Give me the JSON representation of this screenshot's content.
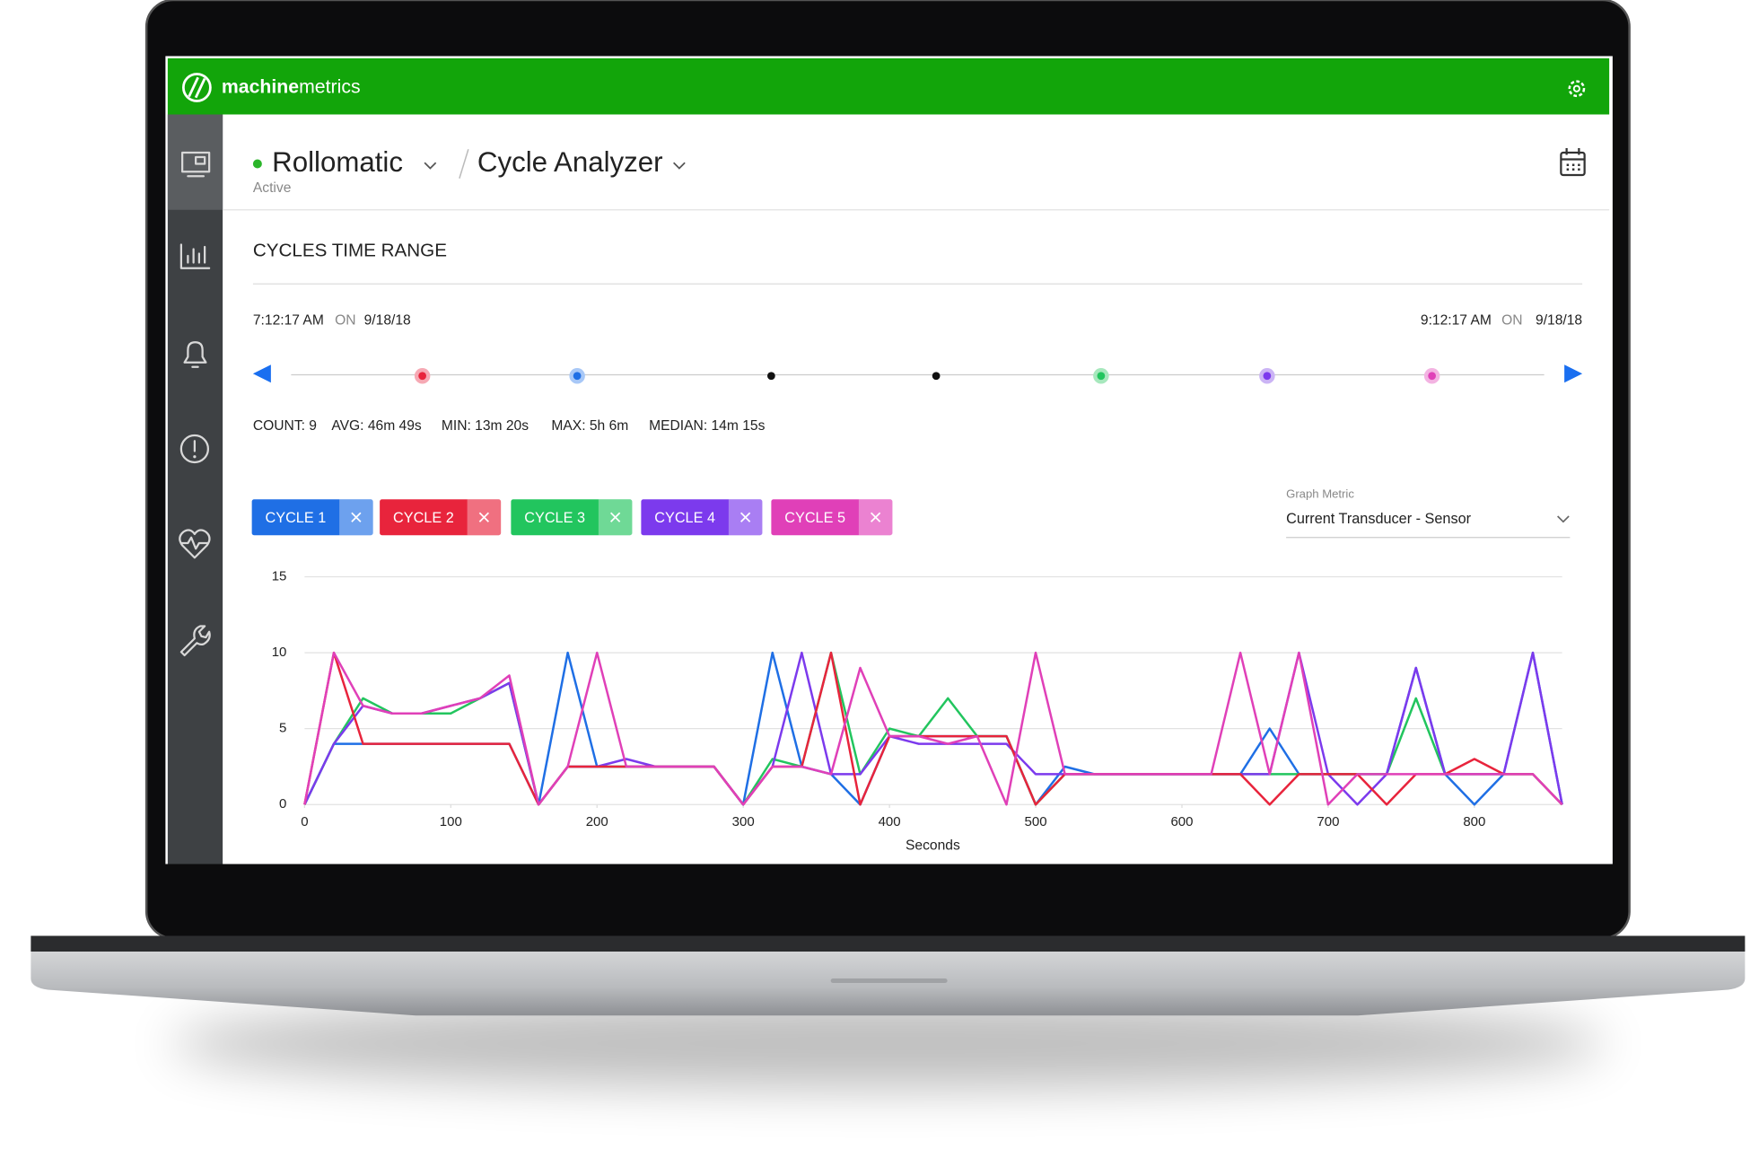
{
  "header": {
    "brand": [
      "machine",
      "metrics"
    ]
  },
  "title": {
    "machine": "Rollomatic",
    "status": "Active",
    "view": "Cycle Analyzer"
  },
  "section": {
    "title": "CYCLES TIME RANGE"
  },
  "range": {
    "start": {
      "time": "7:12:17 AM",
      "on": "ON",
      "date": "9/18/18"
    },
    "end": {
      "time": "9:12:17 AM",
      "on": "ON",
      "date": "9/18/18"
    }
  },
  "stats": [
    "COUNT: 9",
    "AVG: 46m 49s",
    "MIN: 13m 20s",
    "MAX: 5h 6m",
    "MEDIAN: 14m 15s"
  ],
  "graph_metric": {
    "label": "Graph Metric",
    "value": "Current Transducer - Sensor"
  },
  "chart_data": {
    "type": "line",
    "x": [
      0,
      20,
      40,
      60,
      80,
      100,
      120,
      140,
      160,
      180,
      200,
      220,
      240,
      260,
      280,
      300,
      320,
      340,
      360,
      380,
      400,
      420,
      440,
      460,
      480,
      500,
      520,
      540,
      560,
      580,
      600,
      620,
      640,
      660,
      680,
      700,
      720,
      740,
      760,
      780,
      800,
      820,
      840,
      860
    ],
    "xlim": [
      0,
      860
    ],
    "xticks": [
      0,
      100,
      200,
      300,
      400,
      500,
      600,
      700,
      800
    ],
    "ylim": [
      0,
      15
    ],
    "yticks": [
      0,
      5,
      10,
      15
    ],
    "xlabel": "Seconds",
    "grid": true,
    "series": [
      {
        "name": "CYCLE 1",
        "color": "#1f6fe5",
        "values": [
          0,
          4,
          4,
          4,
          4,
          4,
          4,
          4,
          0,
          10,
          2.5,
          2.5,
          2.5,
          2.5,
          2.5,
          0,
          10,
          2.5,
          2,
          0,
          4.5,
          4.5,
          4.5,
          4.5,
          4.5,
          0,
          2.5,
          2,
          2,
          2,
          2,
          2,
          2,
          5,
          2,
          2,
          2,
          2,
          9,
          2,
          0,
          2,
          10,
          0
        ]
      },
      {
        "name": "CYCLE 2",
        "color": "#e8243c",
        "values": [
          0,
          10,
          4,
          4,
          4,
          4,
          4,
          4,
          0,
          2.5,
          2.5,
          2.5,
          2.5,
          2.5,
          2.5,
          0,
          2.5,
          2.5,
          10,
          0,
          4.5,
          4.5,
          4.5,
          4.5,
          4.5,
          0,
          2,
          2,
          2,
          2,
          2,
          2,
          2,
          0,
          2,
          2,
          2,
          0,
          2,
          2,
          3,
          2,
          2,
          0
        ]
      },
      {
        "name": "CYCLE 3",
        "color": "#22c55e",
        "values": [
          0,
          4,
          7,
          6,
          6,
          6,
          7,
          8,
          0,
          2.5,
          2.5,
          2.5,
          2.5,
          2.5,
          2.5,
          0,
          3,
          2.5,
          10,
          2,
          5,
          4.5,
          7,
          4.5,
          4.5,
          0,
          2,
          2,
          2,
          2,
          2,
          2,
          2,
          2,
          2,
          2,
          2,
          2,
          7,
          2,
          2,
          2,
          2,
          0
        ]
      },
      {
        "name": "CYCLE 4",
        "color": "#7c3aed",
        "values": [
          0,
          4,
          6.5,
          6,
          6,
          6.5,
          7,
          8,
          0,
          2.5,
          2.5,
          3,
          2.5,
          2.5,
          2.5,
          0,
          2.5,
          10,
          2,
          2,
          4.5,
          4,
          4,
          4,
          4,
          2,
          2,
          2,
          2,
          2,
          2,
          2,
          2,
          2,
          10,
          2,
          0,
          2,
          9,
          2,
          2,
          2,
          10,
          0
        ]
      },
      {
        "name": "CYCLE 5",
        "color": "#e040b8",
        "values": [
          0,
          10,
          6.5,
          6,
          6,
          6.5,
          7,
          8.5,
          0,
          2.5,
          10,
          2.5,
          2.5,
          2.5,
          2.5,
          0,
          2.5,
          2.5,
          2,
          9,
          4.5,
          4.5,
          4,
          4.5,
          0,
          10,
          2,
          2,
          2,
          2,
          2,
          2,
          10,
          2,
          10,
          0,
          2,
          2,
          2,
          2,
          2,
          2,
          2,
          0
        ]
      }
    ]
  }
}
